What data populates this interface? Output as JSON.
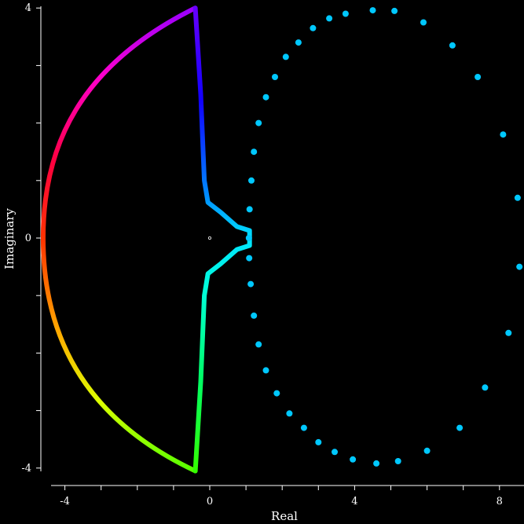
{
  "chart_data": {
    "type": "scatter",
    "xlabel": "Real",
    "ylabel": "Imaginary",
    "xlim": [
      -4.5,
      8.6
    ],
    "ylim": [
      -4.2,
      4.1
    ],
    "xticks": [
      "-4",
      "0",
      "4",
      "8"
    ],
    "yticks": [
      "4",
      "0",
      "-4"
    ],
    "grid": false,
    "background": "#000000",
    "series": [
      {
        "style": "rainbow-curve",
        "description_points": [
          {
            "re": -0.4,
            "im": 4.0
          },
          {
            "re": -0.25,
            "im": 2.5
          },
          {
            "re": -0.15,
            "im": 1.0
          },
          {
            "re": -0.05,
            "im": 0.62
          },
          {
            "re": 0.3,
            "im": 0.45
          },
          {
            "re": 0.75,
            "im": 0.2
          },
          {
            "re": 1.1,
            "im": 0.13
          },
          {
            "re": 1.1,
            "im": -0.13
          },
          {
            "re": 0.75,
            "im": -0.2
          },
          {
            "re": 0.3,
            "im": -0.45
          },
          {
            "re": -0.05,
            "im": -0.62
          },
          {
            "re": -0.15,
            "im": -1.0
          },
          {
            "re": -0.25,
            "im": -2.5
          },
          {
            "re": -0.4,
            "im": -4.05
          }
        ],
        "arc": {
          "center_re": -0.65,
          "center_im": 0.0,
          "radius": 4.0
        }
      },
      {
        "style": "dots",
        "color": "#00c8ff",
        "points": [
          {
            "re": 1.08,
            "im": 0.0
          },
          {
            "re": 1.1,
            "im": 0.5
          },
          {
            "re": 1.15,
            "im": 1.0
          },
          {
            "re": 1.22,
            "im": 1.5
          },
          {
            "re": 1.35,
            "im": 2.0
          },
          {
            "re": 1.55,
            "im": 2.45
          },
          {
            "re": 1.8,
            "im": 2.8
          },
          {
            "re": 2.1,
            "im": 3.15
          },
          {
            "re": 2.45,
            "im": 3.4
          },
          {
            "re": 2.85,
            "im": 3.65
          },
          {
            "re": 3.3,
            "im": 3.82
          },
          {
            "re": 3.75,
            "im": 3.9
          },
          {
            "re": 4.5,
            "im": 3.96
          },
          {
            "re": 5.1,
            "im": 3.95
          },
          {
            "re": 5.9,
            "im": 3.75
          },
          {
            "re": 6.7,
            "im": 3.35
          },
          {
            "re": 7.4,
            "im": 2.8
          },
          {
            "re": 8.1,
            "im": 1.8
          },
          {
            "re": 8.5,
            "im": 0.7
          },
          {
            "re": 8.55,
            "im": -0.5
          },
          {
            "re": 8.25,
            "im": -1.65
          },
          {
            "re": 7.6,
            "im": -2.6
          },
          {
            "re": 6.9,
            "im": -3.3
          },
          {
            "re": 6.0,
            "im": -3.7
          },
          {
            "re": 5.2,
            "im": -3.88
          },
          {
            "re": 4.6,
            "im": -3.92
          },
          {
            "re": 3.95,
            "im": -3.85
          },
          {
            "re": 3.45,
            "im": -3.72
          },
          {
            "re": 3.0,
            "im": -3.55
          },
          {
            "re": 2.6,
            "im": -3.3
          },
          {
            "re": 2.2,
            "im": -3.05
          },
          {
            "re": 1.85,
            "im": -2.7
          },
          {
            "re": 1.55,
            "im": -2.3
          },
          {
            "re": 1.35,
            "im": -1.85
          },
          {
            "re": 1.22,
            "im": -1.35
          },
          {
            "re": 1.13,
            "im": -0.8
          },
          {
            "re": 1.09,
            "im": -0.35
          }
        ]
      },
      {
        "style": "small-open-circle",
        "color": "#ffffff",
        "points": [
          {
            "re": 0.0,
            "im": 0.0
          }
        ]
      }
    ]
  }
}
